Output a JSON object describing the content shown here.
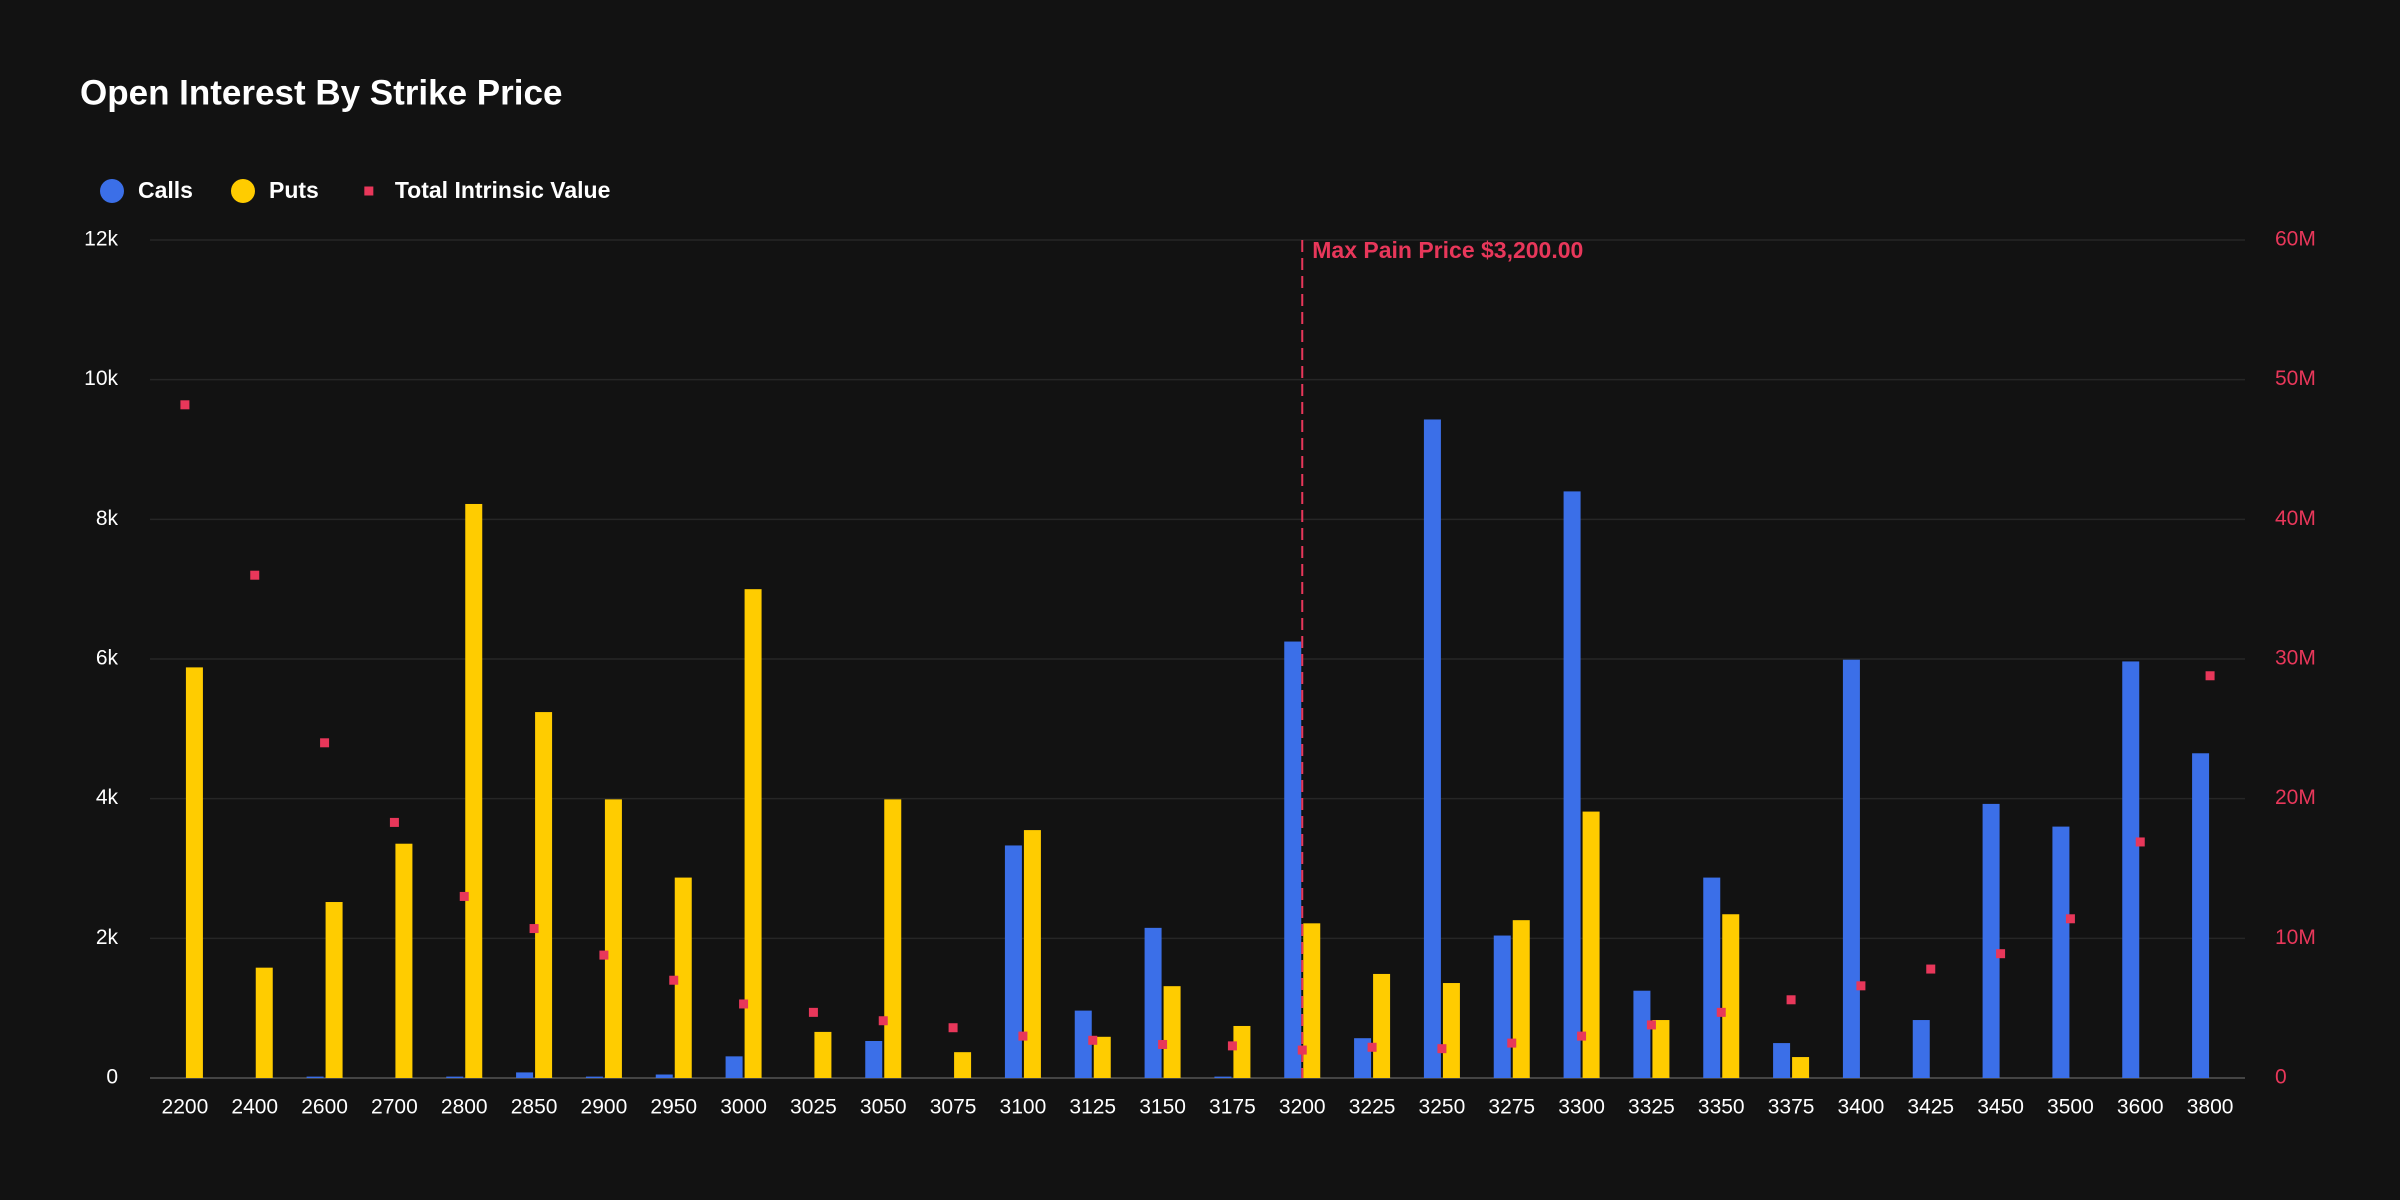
{
  "chart_data": {
    "type": "bar",
    "title": "Open Interest By Strike Price",
    "categories": [
      "2200",
      "2400",
      "2600",
      "2700",
      "2800",
      "2850",
      "2900",
      "2950",
      "3000",
      "3025",
      "3050",
      "3075",
      "3100",
      "3125",
      "3150",
      "3175",
      "3200",
      "3225",
      "3250",
      "3275",
      "3300",
      "3325",
      "3350",
      "3375",
      "3400",
      "3425",
      "3450",
      "3500",
      "3600",
      "3800"
    ],
    "series": [
      {
        "name": "Calls",
        "color": "#3b6fe8",
        "type": "bar",
        "values": [
          0,
          0,
          20,
          0,
          20,
          80,
          20,
          50,
          310,
          0,
          530,
          0,
          3330,
          965,
          2150,
          20,
          6250,
          570,
          9430,
          2040,
          8400,
          1250,
          2870,
          500,
          5990,
          830,
          3925,
          3600,
          5965,
          4650
        ]
      },
      {
        "name": "Puts",
        "color": "#ffcc00",
        "type": "bar",
        "values": [
          5880,
          1580,
          2520,
          3355,
          8220,
          5240,
          3990,
          2870,
          7000,
          660,
          3990,
          370,
          3550,
          590,
          1315,
          745,
          2215,
          1490,
          1360,
          2260,
          3815,
          830,
          2345,
          300,
          0,
          0,
          0,
          0,
          0,
          0
        ]
      },
      {
        "name": "Total Intrinsic Value",
        "color": "#e8375a",
        "type": "scatter",
        "axis": "y2",
        "values": [
          48200000,
          36000000,
          24000000,
          18300000,
          13000000,
          10700000,
          8800000,
          7000000,
          5300000,
          4700000,
          4100000,
          3600000,
          3000000,
          2700000,
          2400000,
          2300000,
          2000000,
          2200000,
          2100000,
          2500000,
          3000000,
          3800000,
          4700000,
          5600000,
          6600000,
          7800000,
          8900000,
          11400000,
          16900000,
          28800000
        ]
      }
    ],
    "ylim": [
      0,
      12000
    ],
    "yticks": [
      0,
      {
        "value": 2000,
        "label": "2k"
      },
      {
        "value": 4000,
        "label": "4k"
      },
      {
        "value": 6000,
        "label": "6k"
      },
      {
        "value": 8000,
        "label": "8k"
      },
      {
        "value": 10000,
        "label": "10k"
      },
      {
        "value": 12000,
        "label": "12k"
      }
    ],
    "y2lim": [
      0,
      60000000
    ],
    "y2ticks": [
      0,
      {
        "value": 10000000,
        "label": "10M"
      },
      {
        "value": 20000000,
        "label": "20M"
      },
      {
        "value": 30000000,
        "label": "30M"
      },
      {
        "value": 40000000,
        "label": "40M"
      },
      {
        "value": 50000000,
        "label": "50M"
      },
      {
        "value": 60000000,
        "label": "60M"
      }
    ],
    "grid": true,
    "annotation": {
      "text": "Max Pain Price $3,200.00",
      "x": "3200",
      "color": "#e8375a"
    }
  }
}
